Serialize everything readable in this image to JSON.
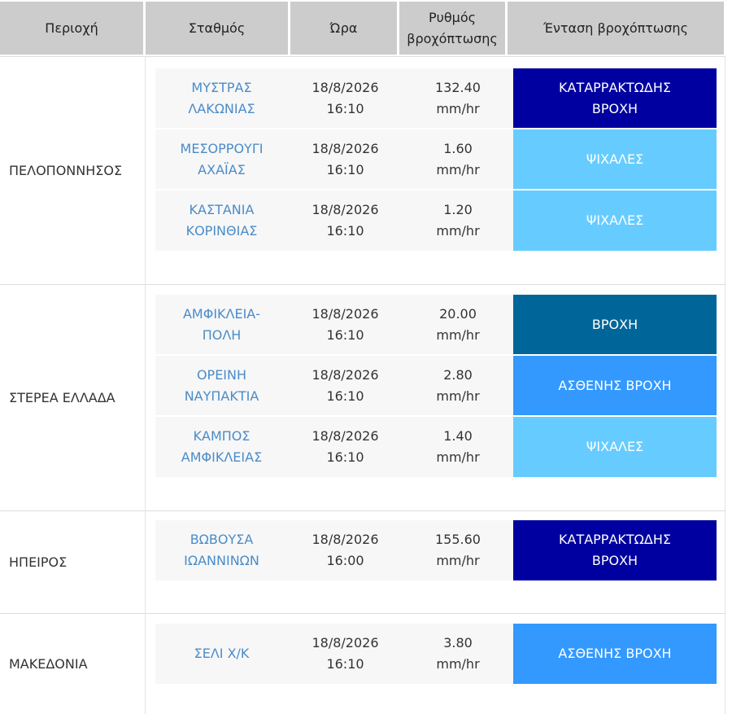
{
  "headers": {
    "region": "Περιοχή",
    "station": "Σταθμός",
    "time": "Ώρα",
    "rate": "Ρυθμός\nβροχόπτωσης",
    "intensity": "Ένταση βροχόπτωσης"
  },
  "colors": {
    "header_bg": "#cccccc",
    "station_link": "#4a8cc9",
    "cataclysmic": "#0000a0",
    "rain": "#006699",
    "light_rain": "#3399ff",
    "drizzle": "#66ccff"
  },
  "regions": [
    {
      "name": "ΠΕΛΟΠΟΝΝΗΣΟΣ",
      "rows": [
        {
          "station": "ΜΥΣΤΡΑΣ\nΛΑΚΩΝΙΑΣ",
          "time": "18/8/2026\n16:10",
          "rate": "132.40\nmm/hr",
          "intensity": "ΚΑΤΑΡΡΑΚΤΩΔΗΣ\nΒΡΟΧΗ",
          "color": "#0000a0"
        },
        {
          "station": "ΜΕΣΟΡΡΟΥΓΙ\nΑΧΑΪΑΣ",
          "time": "18/8/2026\n16:10",
          "rate": "1.60\nmm/hr",
          "intensity": "ΨΙΧΑΛΕΣ",
          "color": "#66ccff"
        },
        {
          "station": "ΚΑΣΤΑΝΙΑ\nΚΟΡΙΝΘΙΑΣ",
          "time": "18/8/2026\n16:10",
          "rate": "1.20\nmm/hr",
          "intensity": "ΨΙΧΑΛΕΣ",
          "color": "#66ccff"
        }
      ]
    },
    {
      "name": "ΣΤΕΡΕΑ ΕΛΛΑΔΑ",
      "rows": [
        {
          "station": "ΑΜΦΙΚΛΕΙΑ-\nΠΟΛΗ",
          "time": "18/8/2026\n16:10",
          "rate": "20.00\nmm/hr",
          "intensity": "ΒΡΟΧΗ",
          "color": "#006699"
        },
        {
          "station": "ΟΡΕΙΝΗ\nΝΑΥΠΑΚΤΙΑ",
          "time": "18/8/2026\n16:10",
          "rate": "2.80\nmm/hr",
          "intensity": "ΑΣΘΕΝΗΣ ΒΡΟΧΗ",
          "color": "#3399ff"
        },
        {
          "station": "ΚΑΜΠΟΣ\nΑΜΦΙΚΛΕΙΑΣ",
          "time": "18/8/2026\n16:10",
          "rate": "1.40\nmm/hr",
          "intensity": "ΨΙΧΑΛΕΣ",
          "color": "#66ccff"
        }
      ]
    },
    {
      "name": "ΗΠΕΙΡΟΣ",
      "rows": [
        {
          "station": "ΒΩΒΟΥΣΑ\nΙΩΑΝΝΙΝΩΝ",
          "time": "18/8/2026\n16:00",
          "rate": "155.60\nmm/hr",
          "intensity": "ΚΑΤΑΡΡΑΚΤΩΔΗΣ\nΒΡΟΧΗ",
          "color": "#0000a0"
        }
      ]
    },
    {
      "name": "ΜΑΚΕΔΟΝΙΑ",
      "rows": [
        {
          "station": "ΣΕΛΙ Χ/Κ",
          "time": "18/8/2026\n16:10",
          "rate": "3.80\nmm/hr",
          "intensity": "ΑΣΘΕΝΗΣ ΒΡΟΧΗ",
          "color": "#3399ff"
        }
      ]
    }
  ]
}
